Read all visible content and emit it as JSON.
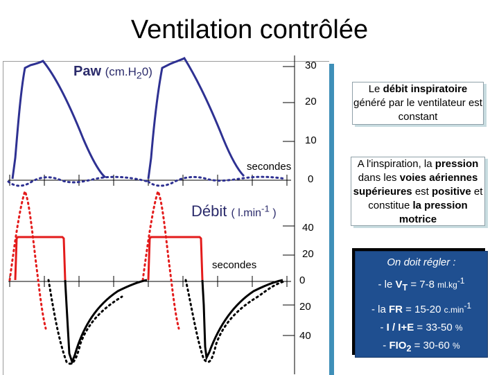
{
  "title": "Ventilation contrôlée",
  "pressure_chart": {
    "label": "Paw",
    "unit_prefix": "(cm.H",
    "unit_sub": "2",
    "unit_suffix": "0)",
    "x_label": "secondes",
    "ticks": [
      "30",
      "20",
      "10",
      "0"
    ]
  },
  "flow_chart": {
    "label": "Débit",
    "unit_prefix": "( l.min",
    "unit_sup": "-1",
    "unit_suffix": " )",
    "x_label": "secondes",
    "ticks": [
      "40",
      "20",
      "0",
      "20",
      "40"
    ]
  },
  "notes": {
    "constant_flow": {
      "pre": "Le ",
      "bold": "débit inspiratoire",
      "post": "généré par le ventilateur est constant"
    },
    "pressure": {
      "t1": "A l'inspiration, la ",
      "b1": "pression",
      "t2": " dans les ",
      "b2": "voies aériennes supérieures",
      "t3": " est ",
      "b3": "positive",
      "t4": " et constitue ",
      "b4": "la pression motrice"
    },
    "settings": {
      "heading": "On doit régler :",
      "vt_pre": "- le ",
      "vt_bold": "V",
      "vt_sub": "T",
      "vt_value": " = 7-8 ",
      "vt_unit": "ml.kg",
      "vt_sup": "-1",
      "fr_pre": "- la ",
      "fr_bold": "FR",
      "fr_value": " = 15-20 ",
      "fr_unit": "c.min",
      "fr_sup": "-1",
      "ie_pre": "- ",
      "ie_bold": "I / I+E",
      "ie_value": " = 33-50 ",
      "ie_unit": "%",
      "fio2_pre": "- ",
      "fio2_bold": "FIO",
      "fio2_sub": "2",
      "fio2_value": " = 30-60 ",
      "fio2_unit": "%"
    }
  },
  "colors": {
    "pressure_curve": "#2e3192",
    "flow_inspiratory": "#e31b1b",
    "flow_expiratory": "#000000",
    "panel_shadow": "#3f8fb8",
    "settings_box": "#1f4f90"
  }
}
